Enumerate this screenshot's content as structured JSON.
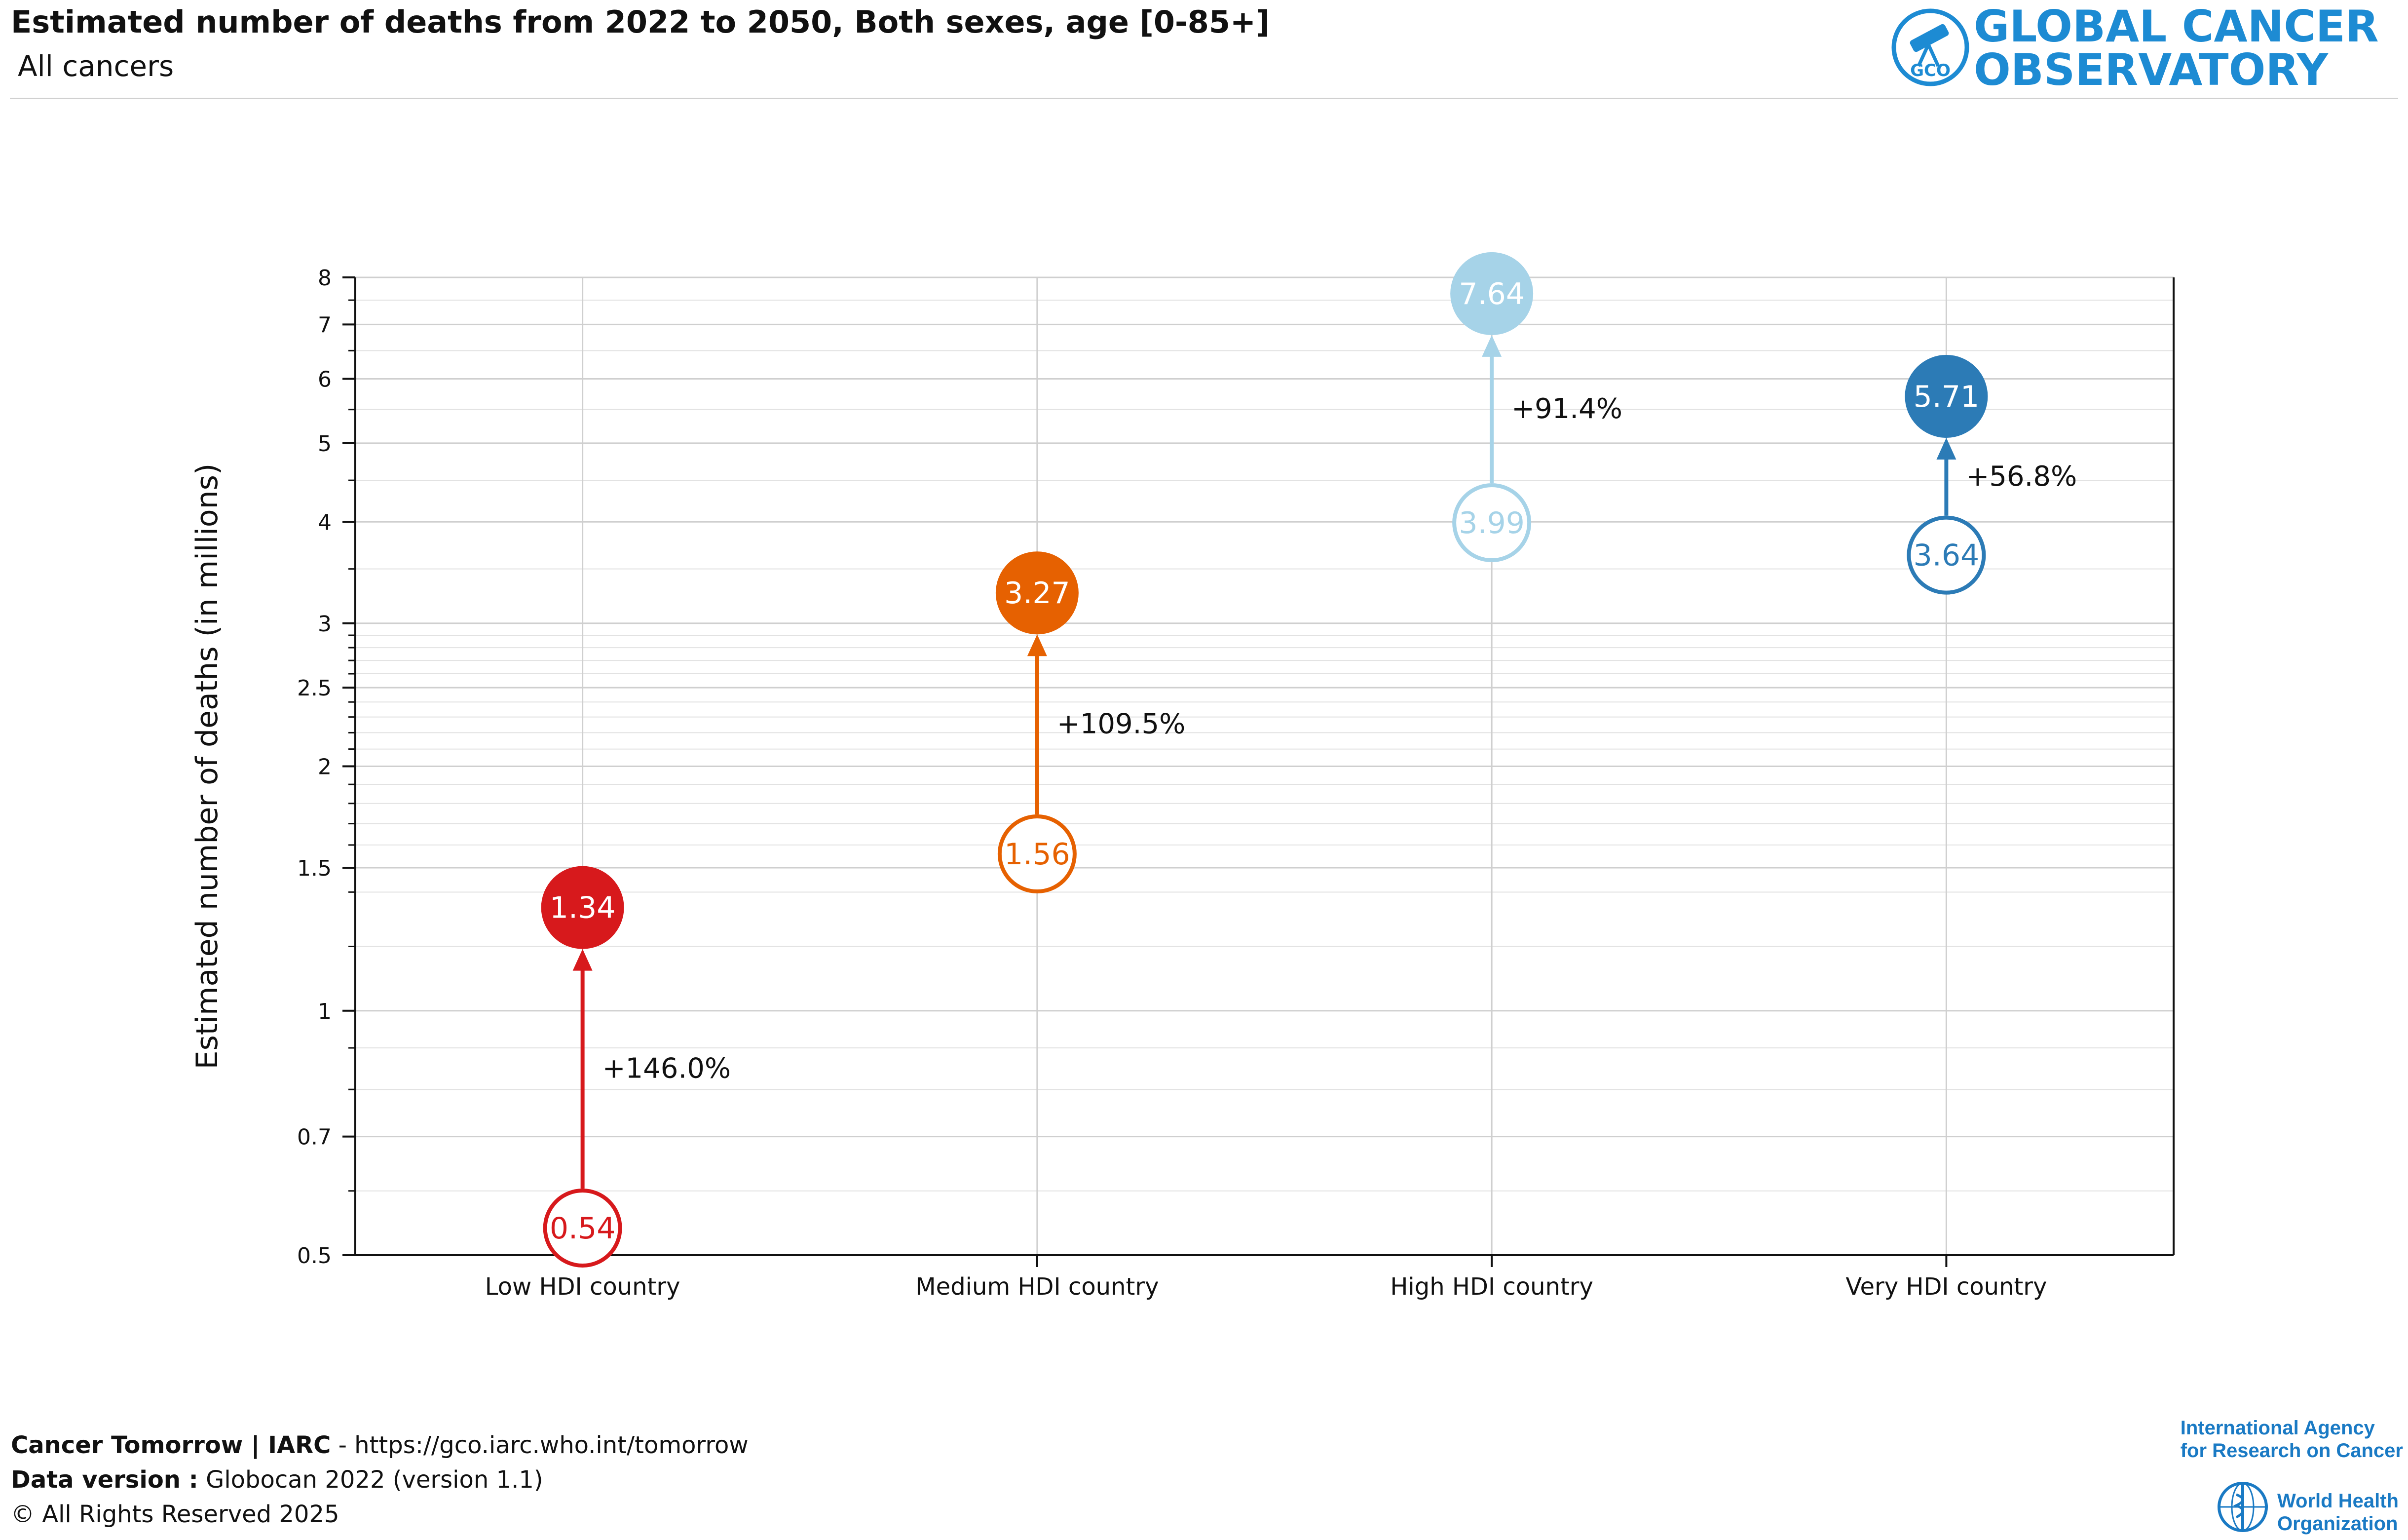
{
  "header": {
    "title": "Estimated number of deaths from 2022 to 2050, Both sexes, age [0-85+]",
    "subtitle": "All cancers"
  },
  "brand": {
    "line1": "GLOBAL CANCER",
    "line2": "OBSERVATORY",
    "badge": "GCO",
    "color": "#1d8bd3"
  },
  "footer": {
    "line1_bold": "Cancer Tomorrow | IARC",
    "line1_rest": " - https://gco.iarc.who.int/tomorrow",
    "line2_bold": "Data version :",
    "line2_rest": " Globocan 2022 (version 1.1)",
    "line3": "© All Rights Reserved 2025"
  },
  "iarc": {
    "line1": "International Agency",
    "line2": "for Research on Cancer",
    "who1": "World Health",
    "who2": "Organization"
  },
  "chart_data": {
    "type": "dumbbell",
    "title": "Estimated number of deaths from 2022 to 2050, Both sexes, age [0-85+]",
    "ylabel": "Estimated number of deaths (in millions)",
    "xlabel": "",
    "yscale": "log",
    "ylim": [
      0.5,
      8
    ],
    "yticks": [
      0.5,
      0.7,
      1,
      1.5,
      2,
      2.5,
      3,
      4,
      5,
      6,
      7,
      8
    ],
    "ytick_labels": [
      "0.5",
      "0.7",
      "1",
      "1.5",
      "2",
      "2.5",
      "3",
      "4",
      "5",
      "6",
      "7",
      "8"
    ],
    "categories": [
      "Low HDI country",
      "Medium HDI country",
      "High HDI country",
      "Very HDI country"
    ],
    "series": [
      {
        "name": "2022",
        "values": [
          0.54,
          1.56,
          3.99,
          3.64
        ],
        "labels": [
          "0.54",
          "1.56",
          "3.99",
          "3.64"
        ]
      },
      {
        "name": "2050",
        "values": [
          1.34,
          3.27,
          7.64,
          5.71
        ],
        "labels": [
          "1.34",
          "3.27",
          "7.64",
          "5.71"
        ]
      }
    ],
    "change_labels": [
      "+146.0%",
      "+109.5%",
      "+91.4%",
      "+56.8%"
    ],
    "colors": [
      "#d7191c",
      "#e66101",
      "#a6d3e8",
      "#2c7bb6"
    ]
  }
}
